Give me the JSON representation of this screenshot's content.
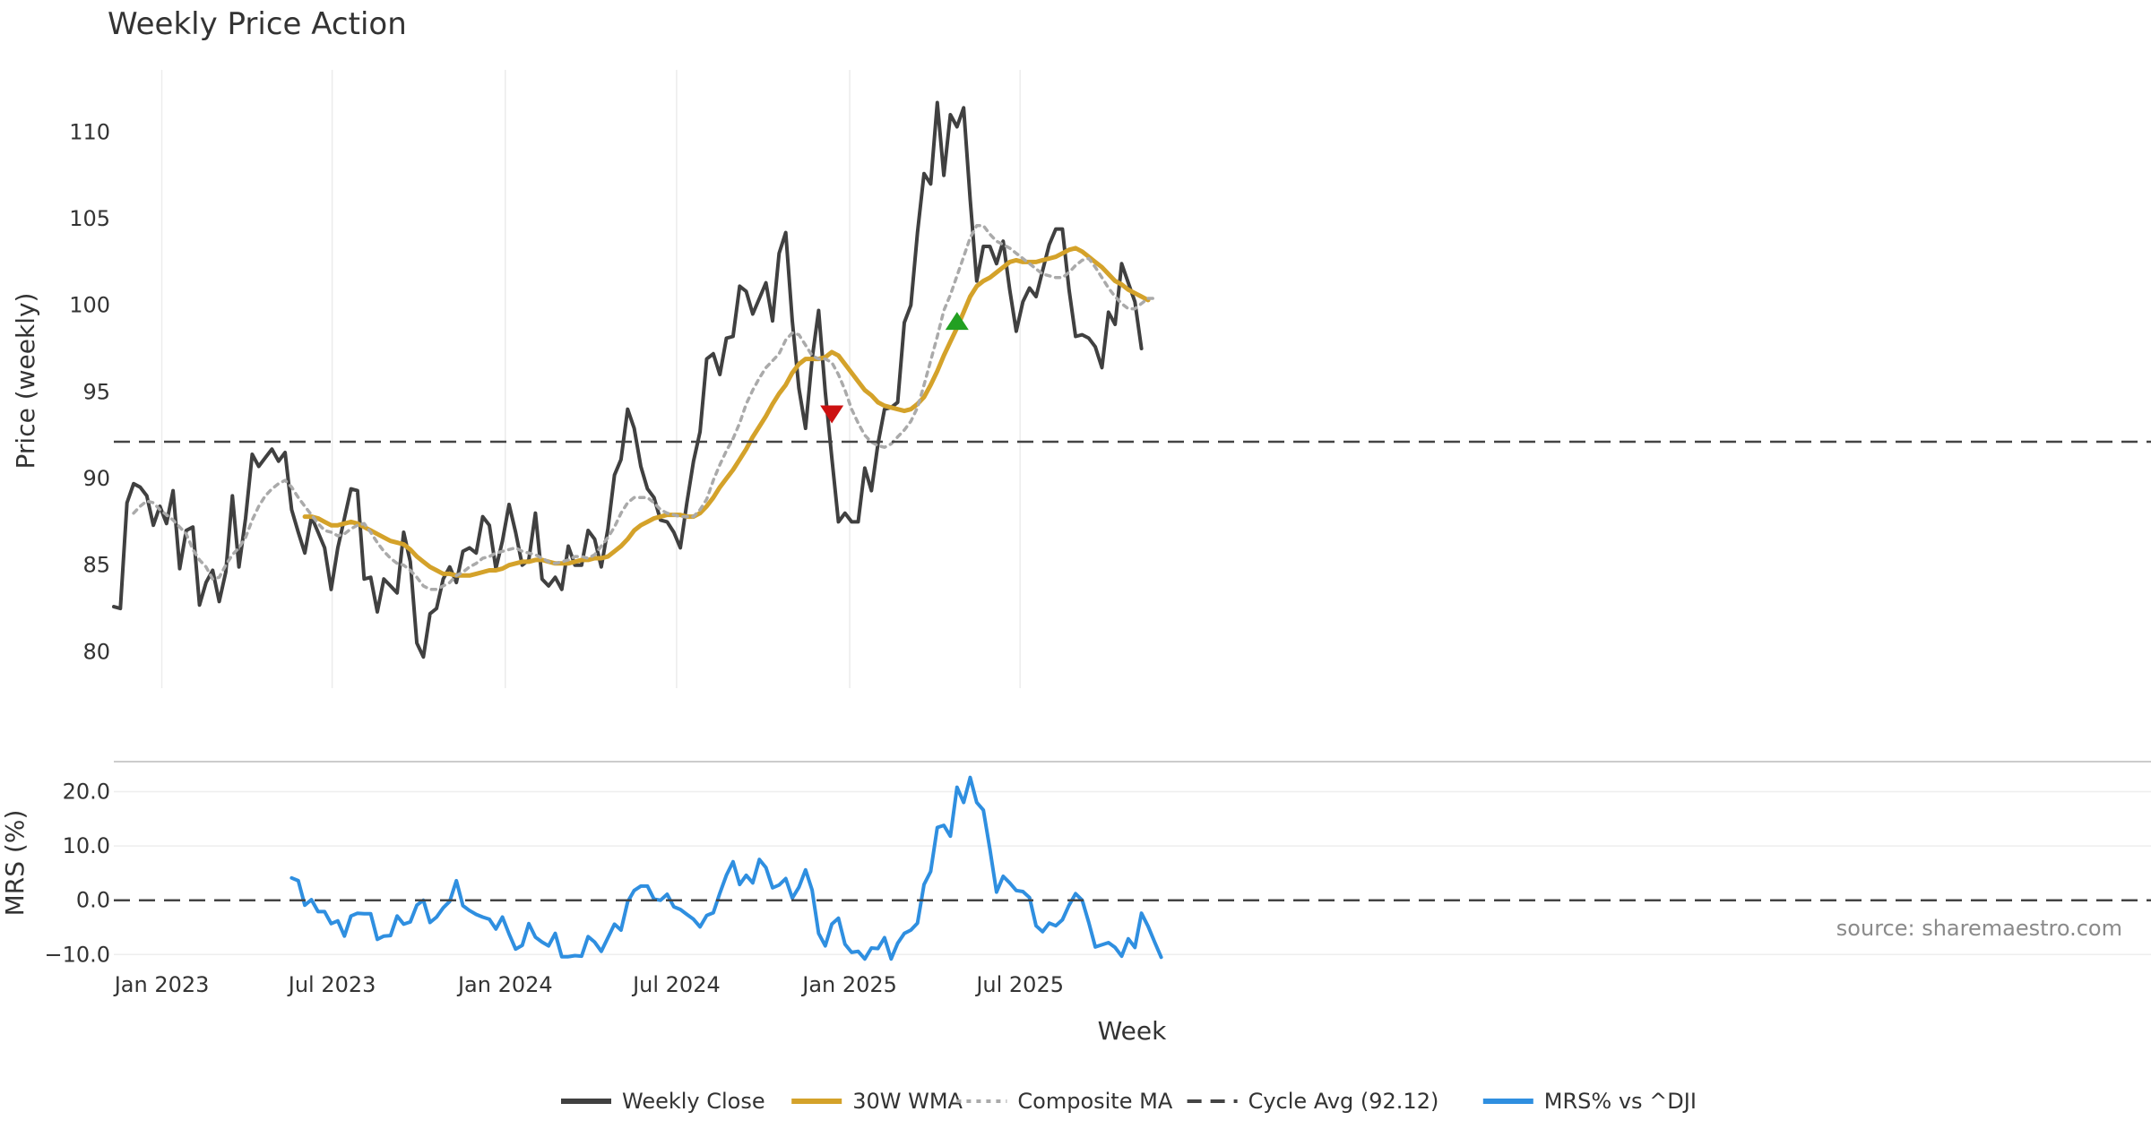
{
  "chart_data": [
    {
      "type": "line",
      "title": "Weekly Price Action",
      "ylabel": "Price (weekly)",
      "ylim": [
        77.9,
        114.0
      ],
      "yticks": [
        80,
        85,
        90,
        95,
        100,
        105,
        110
      ],
      "grid": "vertical",
      "x_start": "2022-11-11",
      "x_step_days": 7,
      "series": [
        {
          "name": "Weekly Close",
          "color": "#404040",
          "style": "solid",
          "values": [
            82.6,
            82.5,
            88.6,
            89.7,
            89.5,
            89.0,
            87.3,
            88.4,
            87.4,
            89.3,
            84.8,
            87.0,
            87.2,
            82.7,
            84.0,
            84.7,
            82.9,
            84.6,
            89.0,
            84.9,
            87.7,
            91.4,
            90.7,
            91.2,
            91.7,
            91.0,
            91.5,
            88.2,
            86.9,
            85.7,
            87.8,
            86.9,
            86.0,
            83.6,
            86.0,
            87.7,
            89.4,
            89.3,
            84.2,
            84.3,
            82.3,
            84.2,
            83.8,
            83.4,
            86.9,
            85.2,
            80.5,
            79.7,
            82.2,
            82.5,
            84.2,
            84.9,
            84.0,
            85.8,
            86.0,
            85.7,
            87.8,
            87.3,
            84.8,
            86.4,
            88.5,
            86.9,
            85.0,
            85.3,
            88.0,
            84.2,
            83.8,
            84.3,
            83.6,
            86.1,
            85.0,
            85.0,
            87.0,
            86.5,
            84.9,
            87.1,
            90.2,
            91.1,
            94.0,
            92.9,
            90.7,
            89.4,
            88.9,
            87.6,
            87.5,
            86.9,
            86.0,
            88.6,
            91.0,
            92.7,
            96.9,
            97.2,
            96.0,
            98.1,
            98.2,
            101.1,
            100.8,
            99.5,
            100.4,
            101.3,
            99.1,
            103.0,
            104.2,
            99.1,
            95.2,
            92.9,
            96.9,
            99.7,
            95.0,
            91.2,
            87.5,
            88.0,
            87.5,
            87.5,
            90.6,
            89.3,
            92.0,
            94.0,
            94.1,
            94.4,
            99.0,
            100.0,
            104.2,
            107.6,
            107.0,
            111.7,
            107.5,
            111.0,
            110.3,
            111.4,
            106.1,
            101.4,
            103.4,
            103.4,
            102.4,
            103.7,
            100.9,
            98.5,
            100.2,
            101.0,
            100.5,
            102.0,
            103.5,
            104.4,
            104.4,
            100.9,
            98.2,
            98.3,
            98.1,
            97.6,
            96.4,
            99.6,
            98.9,
            102.4,
            101.3,
            100.2,
            97.5
          ]
        },
        {
          "name": "30W WMA",
          "color": "#d4a22a",
          "style": "solid",
          "x_offset": 29,
          "values": [
            87.8,
            87.8,
            87.7,
            87.5,
            87.3,
            87.3,
            87.4,
            87.5,
            87.4,
            87.2,
            87.0,
            86.8,
            86.6,
            86.4,
            86.3,
            86.2,
            85.9,
            85.5,
            85.2,
            84.9,
            84.7,
            84.5,
            84.5,
            84.4,
            84.4,
            84.4,
            84.5,
            84.6,
            84.7,
            84.7,
            84.8,
            85.0,
            85.1,
            85.2,
            85.2,
            85.3,
            85.3,
            85.2,
            85.1,
            85.1,
            85.1,
            85.2,
            85.3,
            85.3,
            85.4,
            85.4,
            85.5,
            85.8,
            86.1,
            86.5,
            87.0,
            87.3,
            87.5,
            87.7,
            87.8,
            87.9,
            87.9,
            87.9,
            87.8,
            87.8,
            88.0,
            88.4,
            88.9,
            89.5,
            90.0,
            90.5,
            91.1,
            91.7,
            92.4,
            93.0,
            93.6,
            94.3,
            94.9,
            95.4,
            96.1,
            96.6,
            96.9,
            96.9,
            96.9,
            97.0,
            97.3,
            97.1,
            96.6,
            96.1,
            95.6,
            95.1,
            94.8,
            94.4,
            94.2,
            94.1,
            94.0,
            93.9,
            94.0,
            94.3,
            94.7,
            95.4,
            96.2,
            97.1,
            97.9,
            98.7,
            99.6,
            100.5,
            101.1,
            101.4,
            101.6,
            101.9,
            102.2,
            102.5,
            102.6,
            102.5,
            102.5,
            102.5,
            102.6,
            102.7,
            102.8,
            103.0,
            103.2,
            103.3,
            103.1,
            102.8,
            102.5,
            102.2,
            101.8,
            101.4,
            101.2,
            100.9,
            100.7,
            100.5,
            100.3
          ]
        },
        {
          "name": "Composite MA",
          "color": "#aaaaaa",
          "style": "dotted",
          "x_offset": 3,
          "values": [
            88.0,
            88.4,
            88.7,
            88.6,
            88.2,
            87.9,
            87.6,
            87.2,
            86.8,
            85.9,
            85.3,
            84.9,
            84.2,
            84.3,
            85.0,
            85.6,
            86.0,
            86.6,
            87.6,
            88.4,
            89.0,
            89.4,
            89.7,
            89.9,
            89.5,
            88.9,
            88.4,
            87.9,
            87.4,
            87.0,
            86.9,
            86.7,
            86.8,
            87.1,
            87.3,
            87.4,
            86.9,
            86.3,
            85.8,
            85.4,
            85.1,
            85.0,
            84.7,
            84.3,
            83.8,
            83.6,
            83.6,
            83.8,
            84.0,
            84.4,
            84.6,
            84.9,
            85.1,
            85.4,
            85.5,
            85.7,
            85.8,
            85.9,
            86.0,
            85.8,
            85.7,
            85.6,
            85.4,
            85.2,
            85.1,
            85.2,
            85.3,
            85.5,
            85.5,
            85.4,
            85.6,
            86.1,
            86.6,
            87.2,
            88.0,
            88.6,
            88.9,
            88.9,
            88.9,
            88.6,
            88.2,
            88.0,
            87.9,
            87.8,
            87.8,
            87.8,
            88.2,
            88.8,
            89.9,
            90.8,
            91.6,
            92.3,
            93.2,
            94.3,
            95.1,
            95.8,
            96.4,
            96.8,
            97.2,
            98.0,
            98.4,
            98.3,
            97.7,
            97.1,
            96.9,
            96.9,
            96.7,
            96.0,
            95.1,
            94.0,
            93.2,
            92.5,
            92.1,
            91.9,
            91.8,
            92.0,
            92.4,
            92.8,
            93.3,
            94.1,
            95.4,
            96.8,
            98.2,
            99.7,
            100.6,
            101.7,
            102.8,
            103.9,
            104.6,
            104.6,
            104.1,
            103.7,
            103.5,
            103.3,
            103.0,
            102.7,
            102.4,
            102.1,
            101.8,
            101.7,
            101.6,
            101.6,
            101.9,
            102.3,
            102.6,
            102.7,
            102.2,
            101.6,
            101.0,
            100.5,
            100.1,
            99.8,
            99.8,
            100.1,
            100.4,
            100.4
          ]
        },
        {
          "name": "Cycle Avg (92.12)",
          "color": "#444444",
          "style": "dashed",
          "value": 92.12
        }
      ],
      "markers": [
        {
          "type": "sell",
          "shape": "triangle-down",
          "color": "#cc1111",
          "week": 109,
          "y": 93.7
        },
        {
          "type": "buy",
          "shape": "triangle-up",
          "color": "#22a022",
          "week": 128,
          "y": 99.1
        }
      ]
    },
    {
      "type": "line",
      "ylabel": "MRS (%)",
      "ylim": [
        -11.6,
        24.7
      ],
      "yticks": [
        20.0,
        10.0,
        0.0,
        -10.0
      ],
      "ytick_labels": [
        "20.0",
        "10.0",
        "0.0",
        "−10.0"
      ],
      "xlabel": "Week",
      "xticks": [
        {
          "label": "Jan 2023",
          "date": "2023-01-01"
        },
        {
          "label": "Jul 2023",
          "date": "2023-07-01"
        },
        {
          "label": "Jan 2024",
          "date": "2024-01-01"
        },
        {
          "label": "Jul 2024",
          "date": "2024-07-01"
        },
        {
          "label": "Jan 2025",
          "date": "2025-01-01"
        },
        {
          "label": "Jul 2025",
          "date": "2025-07-01"
        }
      ],
      "series": [
        {
          "name": "MRS% vs ^DJI",
          "color": "#2f8fe0",
          "style": "solid",
          "x_offset": 27,
          "values": [
            4.1,
            3.6,
            -0.9,
            0.1,
            -2.1,
            -2.1,
            -4.3,
            -3.8,
            -6.6,
            -2.9,
            -2.4,
            -2.5,
            -2.5,
            -7.2,
            -6.6,
            -6.5,
            -2.9,
            -4.4,
            -4.0,
            -0.9,
            0.0,
            -4.1,
            -3.1,
            -1.4,
            -0.2,
            3.6,
            -1.0,
            -1.9,
            -2.6,
            -3.1,
            -3.5,
            -5.3,
            -3.1,
            -6.2,
            -9.0,
            -8.3,
            -4.3,
            -6.8,
            -7.7,
            -8.4,
            -6.1,
            -10.4,
            -10.4,
            -10.2,
            -10.3,
            -6.7,
            -7.7,
            -9.4,
            -6.9,
            -4.4,
            -5.5,
            -0.3,
            1.8,
            2.6,
            2.6,
            0.2,
            0.0,
            1.1,
            -1.2,
            -1.7,
            -2.6,
            -3.5,
            -4.9,
            -2.8,
            -2.3,
            1.3,
            4.6,
            7.1,
            2.9,
            4.6,
            3.2,
            7.5,
            6.0,
            2.3,
            2.8,
            4.0,
            0.4,
            2.4,
            5.6,
            1.9,
            -6.1,
            -8.4,
            -4.4,
            -3.3,
            -8.1,
            -9.6,
            -9.4,
            -10.8,
            -8.8,
            -8.9,
            -6.9,
            -10.8,
            -7.9,
            -6.1,
            -5.5,
            -4.2,
            2.9,
            5.3,
            13.4,
            13.8,
            11.8,
            20.8,
            18.0,
            22.6,
            18.0,
            16.6,
            9.4,
            1.5,
            4.4,
            3.2,
            1.8,
            1.6,
            0.5,
            -4.7,
            -5.8,
            -4.2,
            -4.7,
            -3.6,
            -0.9,
            1.2,
            0.0,
            -4.1,
            -8.6,
            -8.2,
            -7.8,
            -8.7,
            -10.3,
            -7.1,
            -8.7,
            -2.4,
            -4.8,
            -7.7,
            -10.5
          ]
        },
        {
          "name": "zero-line",
          "color": "#444444",
          "style": "dashed",
          "value": 0.0
        }
      ]
    }
  ],
  "legend": {
    "placement": "bottom-center",
    "entries": [
      {
        "label": "Weekly Close",
        "color": "#404040",
        "style": "solid"
      },
      {
        "label": "30W WMA",
        "color": "#d4a22a",
        "style": "solid"
      },
      {
        "label": "Composite MA",
        "color": "#aaaaaa",
        "style": "dotted"
      },
      {
        "label": "Cycle Avg (92.12)",
        "color": "#444444",
        "style": "dashed"
      },
      {
        "label": "MRS% vs ^DJI",
        "color": "#2f8fe0",
        "style": "solid"
      }
    ]
  },
  "source": "source: sharemaestro.com"
}
